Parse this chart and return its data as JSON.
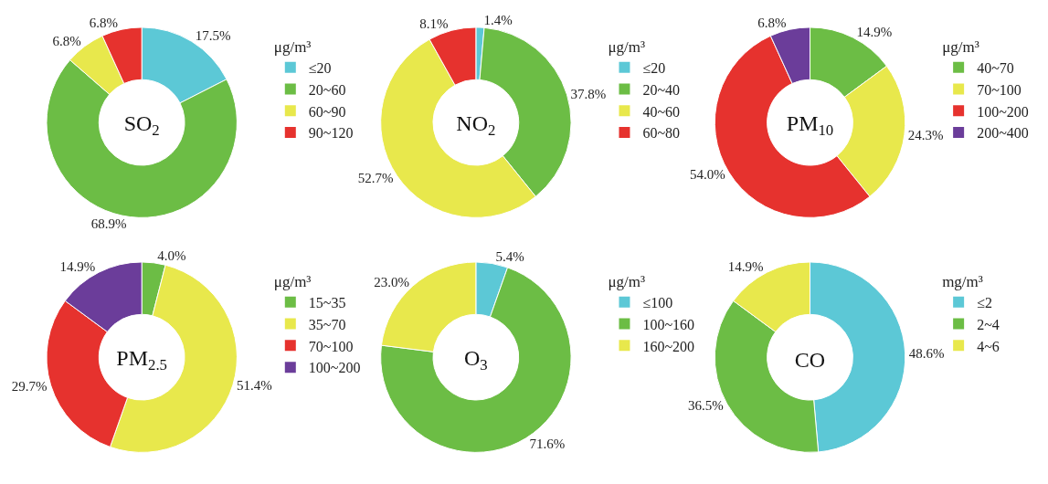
{
  "chart_data": [
    {
      "type": "donut",
      "title": "SO$_{2}$",
      "legend_title": "μg/m³",
      "legend": "right",
      "categories": [
        "≤20",
        "20~60",
        "60~90",
        "90~120"
      ],
      "values": [
        17.5,
        68.9,
        6.8,
        6.8
      ],
      "value_labels": [
        "17.5%",
        "68.9%",
        "6.8%",
        "6.8%"
      ],
      "colors": [
        "#5cc8d6",
        "#6cbd45",
        "#e8e84c",
        "#e6322e"
      ]
    },
    {
      "type": "donut",
      "title": "NO$_{2}$",
      "legend_title": "μg/m³",
      "legend": "right",
      "categories": [
        "≤20",
        "20~40",
        "40~60",
        "60~80"
      ],
      "values": [
        1.4,
        37.8,
        52.7,
        8.1
      ],
      "value_labels": [
        "1.4%",
        "37.8%",
        "52.7%",
        "8.1%"
      ],
      "colors": [
        "#5cc8d6",
        "#6cbd45",
        "#e8e84c",
        "#e6322e"
      ]
    },
    {
      "type": "donut",
      "title": "PM$_{10}$",
      "legend_title": "μg/m³",
      "legend": "right",
      "categories": [
        "40~70",
        "70~100",
        "100~200",
        "200~400"
      ],
      "values": [
        14.9,
        24.3,
        54.0,
        6.8
      ],
      "value_labels": [
        "14.9%",
        "24.3%",
        "54.0%",
        "6.8%"
      ],
      "colors": [
        "#6cbd45",
        "#e8e84c",
        "#e6322e",
        "#6b3d9a"
      ]
    },
    {
      "type": "donut",
      "title": "PM$_{2.5}$",
      "legend_title": "μg/m³",
      "legend": "right",
      "categories": [
        "15~35",
        "35~70",
        "70~100",
        "100~200"
      ],
      "values": [
        4.0,
        51.4,
        29.7,
        14.9
      ],
      "value_labels": [
        "4.0%",
        "51.4%",
        "29.7%",
        "14.9%"
      ],
      "colors": [
        "#6cbd45",
        "#e8e84c",
        "#e6322e",
        "#6b3d9a"
      ]
    },
    {
      "type": "donut",
      "title": "O$_{3}$",
      "legend_title": "μg/m³",
      "legend": "right",
      "categories": [
        "≤100",
        "100~160",
        "160~200"
      ],
      "values": [
        5.4,
        71.6,
        23.0
      ],
      "value_labels": [
        "5.4%",
        "71.6%",
        "23.0%"
      ],
      "colors": [
        "#5cc8d6",
        "#6cbd45",
        "#e8e84c"
      ]
    },
    {
      "type": "donut",
      "title": "CO",
      "legend_title": "mg/m³",
      "legend": "right",
      "categories": [
        "≤2",
        "2~4",
        "4~6"
      ],
      "values": [
        48.6,
        36.5,
        14.9
      ],
      "value_labels": [
        "48.6%",
        "36.5%",
        "14.9%"
      ],
      "colors": [
        "#5cc8d6",
        "#6cbd45",
        "#e8e84c"
      ]
    }
  ]
}
